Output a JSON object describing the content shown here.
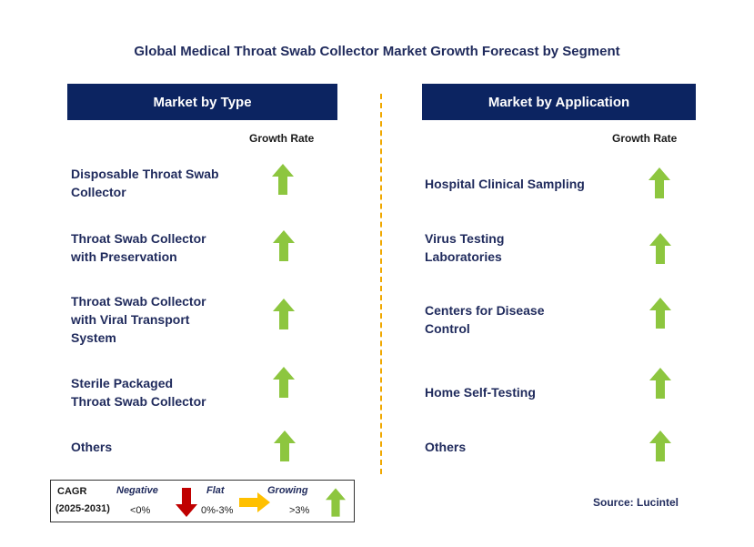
{
  "title": "Global Medical Throat Swab Collector Market Growth Forecast by Segment",
  "left_panel": {
    "header": "Market by Type",
    "growth_rate_label": "Growth Rate",
    "items": [
      {
        "line1": "Disposable Throat Swab",
        "line2": "Collector",
        "line3": "",
        "trend": "growing"
      },
      {
        "line1": "Throat Swab Collector",
        "line2": "with Preservation",
        "line3": "",
        "trend": "growing"
      },
      {
        "line1": "Throat Swab Collector",
        "line2": "with Viral Transport",
        "line3": "System",
        "trend": "growing"
      },
      {
        "line1": "Sterile Packaged",
        "line2": "Throat Swab Collector",
        "line3": "",
        "trend": "growing"
      },
      {
        "line1": "Others",
        "line2": "",
        "line3": "",
        "trend": "growing"
      }
    ]
  },
  "right_panel": {
    "header": "Market by Application",
    "growth_rate_label": "Growth Rate",
    "items": [
      {
        "line1": "Hospital Clinical Sampling",
        "line2": "",
        "trend": "growing"
      },
      {
        "line1": "Virus Testing",
        "line2": "Laboratories",
        "trend": "growing"
      },
      {
        "line1": "Centers for Disease",
        "line2": "Control",
        "trend": "growing"
      },
      {
        "line1": "Home Self-Testing",
        "line2": "",
        "trend": "growing"
      },
      {
        "line1": "Others",
        "line2": "",
        "trend": "growing"
      }
    ]
  },
  "legend": {
    "cagr_label": "CAGR",
    "period": "(2025-2031)",
    "negative_label": "Negative",
    "negative_range": "<0%",
    "flat_label": "Flat",
    "flat_range": "0%-3%",
    "growing_label": "Growing",
    "growing_range": ">3%"
  },
  "source": "Source: Lucintel",
  "colors": {
    "header_bg": "#0c2461",
    "growing_arrow": "#8dc63f",
    "flat_arrow": "#ffc000",
    "negative_arrow": "#c00000",
    "divider": "#f0a800"
  }
}
